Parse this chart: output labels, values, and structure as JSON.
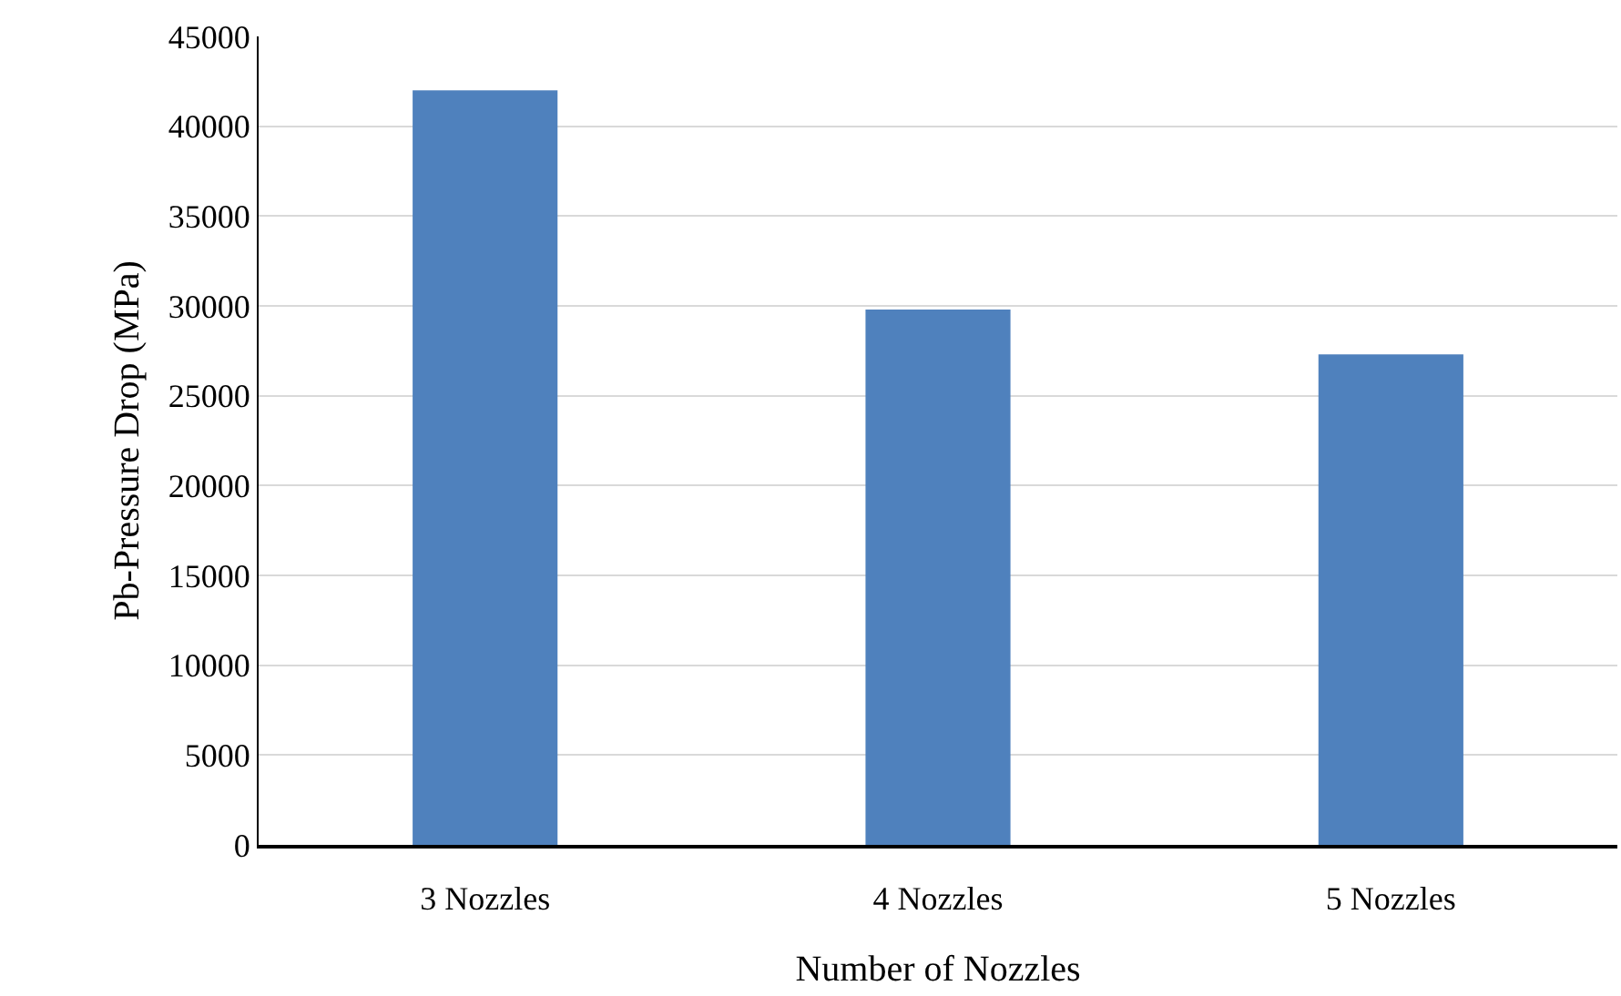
{
  "chart_data": {
    "type": "bar",
    "xlabel": "Number of Nozzles",
    "ylabel": "Pb-Pressure Drop (MPa)",
    "categories": [
      "3 Nozzles",
      "4 Nozzles",
      "5 Nozzles"
    ],
    "values": [
      42000,
      29800,
      27300
    ],
    "color": "#4f81bd",
    "ylim": [
      0,
      45000
    ],
    "yticks": [
      0,
      5000,
      10000,
      15000,
      20000,
      25000,
      30000,
      35000,
      40000,
      45000
    ],
    "grid": "y",
    "legend": false
  }
}
